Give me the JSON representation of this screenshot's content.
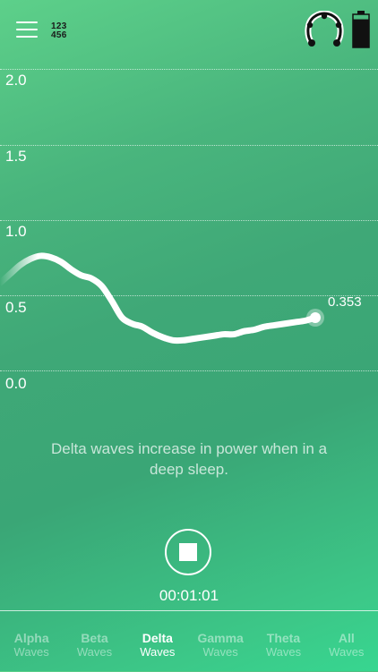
{
  "header": {
    "menu_icon": "hamburger-menu-icon",
    "numpad_line1": "123",
    "numpad_line2": "456",
    "headset_icon": "headset-sensor-icon",
    "battery_icon": "battery-icon",
    "battery_level": 0.85
  },
  "chart_data": {
    "type": "line",
    "y_ticks": [
      "2.0",
      "1.5",
      "1.0",
      "0.5",
      "0.0"
    ],
    "ylim": [
      0,
      2.0
    ],
    "grid": "horizontal dotted",
    "series": [
      {
        "values": [
          0.58,
          0.64,
          0.7,
          0.74,
          0.76,
          0.75,
          0.72,
          0.67,
          0.63,
          0.61,
          0.56,
          0.46,
          0.35,
          0.31,
          0.29,
          0.25,
          0.22,
          0.2,
          0.2,
          0.21,
          0.22,
          0.23,
          0.24,
          0.24,
          0.26,
          0.27,
          0.29,
          0.3,
          0.31,
          0.32,
          0.33,
          0.35
        ]
      }
    ],
    "current_value_label": "0.353",
    "color": "#ffffff"
  },
  "info_text": "Delta waves increase in power when in a deep sleep.",
  "session": {
    "stop_icon": "stop-icon",
    "timer": "00:01:01"
  },
  "tabs": [
    {
      "label": "Alpha",
      "sub": "Waves",
      "active": false
    },
    {
      "label": "Beta",
      "sub": "Waves",
      "active": false
    },
    {
      "label": "Delta",
      "sub": "Waves",
      "active": true
    },
    {
      "label": "Gamma",
      "sub": "Waves",
      "active": false
    },
    {
      "label": "Theta",
      "sub": "Waves",
      "active": false
    },
    {
      "label": "All",
      "sub": "Waves",
      "active": false
    }
  ]
}
